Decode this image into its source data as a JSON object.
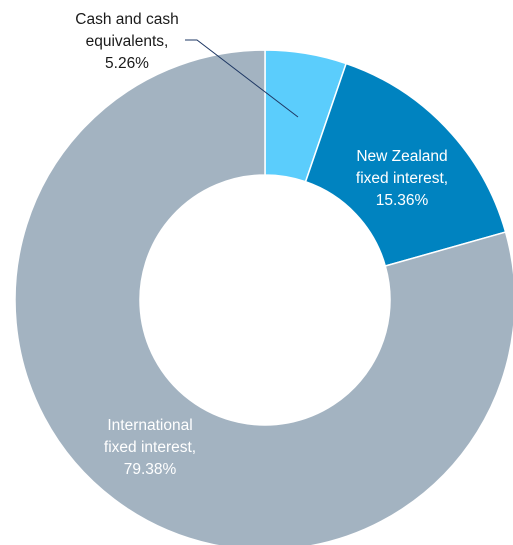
{
  "chart_data": {
    "type": "pie",
    "style": "donut",
    "categories": [
      "Cash and cash equivalents",
      "New Zealand fixed interest",
      "International fixed interest"
    ],
    "values": [
      5.26,
      15.36,
      79.38
    ],
    "unit": "%",
    "colors": [
      "#5bcdfc",
      "#0083c0",
      "#a3b3c1"
    ],
    "labels": [
      {
        "lines": [
          "Cash and cash",
          "equivalents,",
          "5.26%"
        ],
        "color": "#1a1a1a",
        "leader": true
      },
      {
        "lines": [
          "New Zealand",
          "fixed interest,",
          "15.36%"
        ],
        "color": "#ffffff",
        "leader": false
      },
      {
        "lines": [
          "International",
          "fixed interest,",
          "79.38%"
        ],
        "color": "#ffffff",
        "leader": false
      }
    ],
    "leader_color": "#1f3864"
  }
}
